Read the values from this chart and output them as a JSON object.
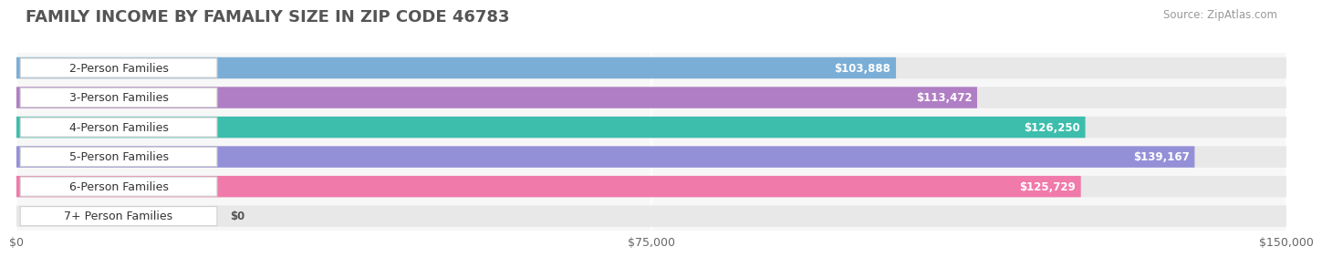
{
  "title": "FAMILY INCOME BY FAMALIY SIZE IN ZIP CODE 46783",
  "source": "Source: ZipAtlas.com",
  "categories": [
    "2-Person Families",
    "3-Person Families",
    "4-Person Families",
    "5-Person Families",
    "6-Person Families",
    "7+ Person Families"
  ],
  "values": [
    103888,
    113472,
    126250,
    139167,
    125729,
    0
  ],
  "bar_colors": [
    "#7baed6",
    "#b07ec4",
    "#3dbdac",
    "#9490d8",
    "#f07aaa",
    "#f5c9a0"
  ],
  "label_texts": [
    "$103,888",
    "$113,472",
    "$126,250",
    "$139,167",
    "$125,729",
    "$0"
  ],
  "xlim": [
    0,
    150000
  ],
  "xticklabels": [
    "$0",
    "$75,000",
    "$150,000"
  ],
  "bg_color": "#ffffff",
  "plot_bg_color": "#f7f7f7",
  "bar_bg_color": "#e8e8e8",
  "title_fontsize": 13,
  "source_fontsize": 8.5,
  "label_fontsize": 8.5,
  "category_fontsize": 9
}
